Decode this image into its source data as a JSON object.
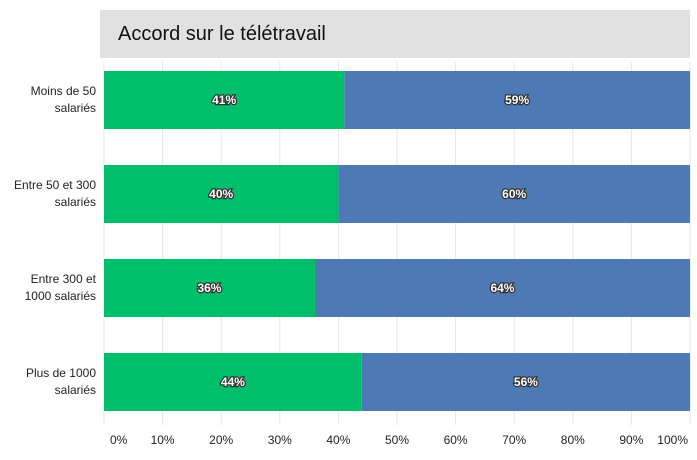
{
  "chart_data": {
    "type": "stacked_barh",
    "title": "Accord sur le télétravail",
    "categories": [
      "Moins de 50 salariés",
      "Entre 50 et 300 salariés",
      "Entre 300 et 1000 salariés",
      "Plus de 1000 salariés"
    ],
    "series": [
      {
        "color": "#00bf6b",
        "values": [
          41,
          40,
          36,
          44
        ],
        "value_labels": [
          "41%",
          "40%",
          "36%",
          "44%"
        ]
      },
      {
        "color": "#4d7ab5",
        "values": [
          59,
          60,
          64,
          56
        ],
        "value_labels": [
          "59%",
          "60%",
          "64%",
          "56%"
        ]
      }
    ],
    "xlim": [
      0,
      100
    ],
    "xticks": [
      {
        "value": 0,
        "label": "0%"
      },
      {
        "value": 10,
        "label": "10%"
      },
      {
        "value": 20,
        "label": "20%"
      },
      {
        "value": 30,
        "label": "30%"
      },
      {
        "value": 40,
        "label": "40%"
      },
      {
        "value": 50,
        "label": "50%"
      },
      {
        "value": 60,
        "label": "60%"
      },
      {
        "value": 70,
        "label": "70%"
      },
      {
        "value": 80,
        "label": "80%"
      },
      {
        "value": 90,
        "label": "90%"
      },
      {
        "value": 100,
        "label": "100%"
      }
    ],
    "grid": true
  }
}
